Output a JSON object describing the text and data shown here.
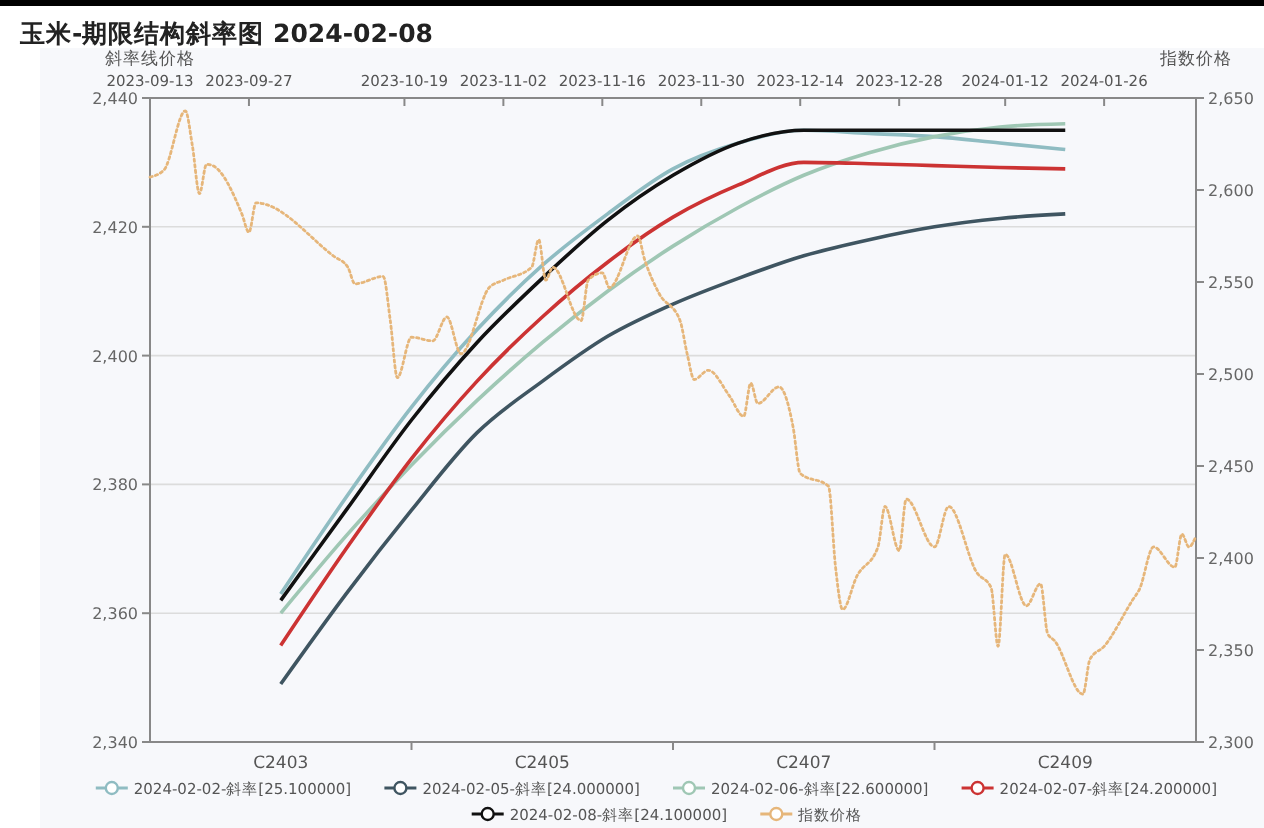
{
  "chart_data": [
    {
      "type": "line",
      "title": "玉米-期限结构斜率图 2024-02-08",
      "ylabel": "斜率线价格",
      "categories": [
        "C2403",
        null,
        null,
        null,
        "C2405",
        null,
        null,
        null,
        "C2407",
        null,
        null,
        null,
        "C2409"
      ],
      "ylim": [
        2340,
        2440
      ],
      "yticks": [
        {
          "value": 2340,
          "label": "2,340"
        },
        {
          "value": 2360,
          "label": "2,360"
        },
        {
          "value": 2380,
          "label": "2,380"
        },
        {
          "value": 2400,
          "label": "2,400"
        },
        {
          "value": 2420,
          "label": "2,420"
        },
        {
          "value": 2440,
          "label": "2,440"
        }
      ],
      "grid": "y",
      "legend": "bottom",
      "series": [
        {
          "name": "2024-02-02-斜率[25.100000]",
          "color": "#8fbcc2",
          "values": [
            2363,
            2378,
            2392,
            2404,
            2414,
            2422,
            2429,
            2433,
            2435,
            2434.5,
            2434,
            2433,
            2432
          ]
        },
        {
          "name": "2024-02-05-斜率[24.000000]",
          "color": "#3f5561",
          "values": [
            2349,
            2363,
            2376,
            2388,
            2396,
            2403,
            2408,
            2412,
            2415.5,
            2418,
            2420,
            2421.3,
            2422
          ]
        },
        {
          "name": "2024-02-06-斜率[22.600000]",
          "color": "#9fc7b4",
          "values": [
            2360,
            2372,
            2383,
            2393,
            2402,
            2410,
            2417,
            2423,
            2428,
            2431.5,
            2434,
            2435.5,
            2436
          ]
        },
        {
          "name": "2024-02-07-斜率[24.200000]",
          "color": "#cc3333",
          "values": [
            2355,
            2370,
            2384,
            2396,
            2406,
            2414.5,
            2421.5,
            2426.5,
            2430,
            2429.8,
            2429.5,
            2429.2,
            2429
          ]
        },
        {
          "name": "2024-02-08-斜率[24.100000]",
          "color": "#111111",
          "values": [
            2362,
            2376,
            2390,
            2402,
            2412,
            2421,
            2428,
            2433,
            2435,
            2435,
            2435,
            2435,
            2435
          ]
        }
      ]
    },
    {
      "type": "line",
      "ylabel": "指数价格",
      "legend": "bottom",
      "line_style": "dotted",
      "xlim": [
        "2023-09-13",
        "2024-02-08"
      ],
      "xticks": [
        "2023-09-13",
        "2023-09-27",
        "2023-10-19",
        "2023-11-02",
        "2023-11-16",
        "2023-11-30",
        "2023-12-14",
        "2023-12-28",
        "2024-01-12",
        "2024-01-26"
      ],
      "ylim": [
        2300,
        2650
      ],
      "yticks": [
        {
          "value": 2300,
          "label": "2,300"
        },
        {
          "value": 2350,
          "label": "2,350"
        },
        {
          "value": 2400,
          "label": "2,400"
        },
        {
          "value": 2450,
          "label": "2,450"
        },
        {
          "value": 2500,
          "label": "2,500"
        },
        {
          "value": 2550,
          "label": "2,550"
        },
        {
          "value": 2600,
          "label": "2,600"
        },
        {
          "value": 2650,
          "label": "2,650"
        }
      ],
      "series": [
        {
          "name": "指数价格",
          "color": "#e6b67a",
          "x": [
            "2023-09-13",
            "2023-09-15",
            "2023-09-18",
            "2023-09-19",
            "2023-09-20",
            "2023-09-21",
            "2023-09-22",
            "2023-09-26",
            "2023-09-27",
            "2023-09-28",
            "2023-10-09",
            "2023-10-11",
            "2023-10-12",
            "2023-10-16",
            "2023-10-17",
            "2023-10-18",
            "2023-10-20",
            "2023-10-23",
            "2023-10-25",
            "2023-10-27",
            "2023-10-31",
            "2023-11-02",
            "2023-11-06",
            "2023-11-07",
            "2023-11-08",
            "2023-11-09",
            "2023-11-13",
            "2023-11-14",
            "2023-11-16",
            "2023-11-17",
            "2023-11-21",
            "2023-11-22",
            "2023-11-24",
            "2023-11-27",
            "2023-11-28",
            "2023-11-29",
            "2023-12-01",
            "2023-12-04",
            "2023-12-06",
            "2023-12-07",
            "2023-12-08",
            "2023-12-11",
            "2023-12-13",
            "2023-12-14",
            "2023-12-18",
            "2023-12-19",
            "2023-12-20",
            "2023-12-22",
            "2023-12-25",
            "2023-12-26",
            "2023-12-28",
            "2023-12-29",
            "2024-01-02",
            "2024-01-04",
            "2024-01-08",
            "2024-01-10",
            "2024-01-11",
            "2024-01-12",
            "2024-01-15",
            "2024-01-17",
            "2024-01-18",
            "2024-01-19",
            "2024-01-23",
            "2024-01-24",
            "2024-01-26",
            "2024-01-30",
            "2024-01-31",
            "2024-02-02",
            "2024-02-05",
            "2024-02-06",
            "2024-02-07",
            "2024-02-08"
          ],
          "values": [
            2607,
            2611,
            2643,
            2624,
            2598,
            2614,
            2613,
            2587,
            2577,
            2593,
            2564,
            2558,
            2549,
            2553,
            2529,
            2498,
            2520,
            2518,
            2531,
            2511,
            2547,
            2551,
            2558,
            2573,
            2551,
            2558,
            2529,
            2551,
            2555,
            2547,
            2575,
            2562,
            2544,
            2529,
            2511,
            2497,
            2502,
            2488,
            2477,
            2495,
            2484,
            2493,
            2471,
            2446,
            2439,
            2395,
            2372,
            2390,
            2406,
            2428,
            2404,
            2432,
            2406,
            2428,
            2392,
            2384,
            2352,
            2402,
            2374,
            2386,
            2359,
            2355,
            2326,
            2345,
            2352,
            2377,
            2383,
            2406,
            2395,
            2413,
            2406,
            2412
          ]
        }
      ]
    }
  ]
}
